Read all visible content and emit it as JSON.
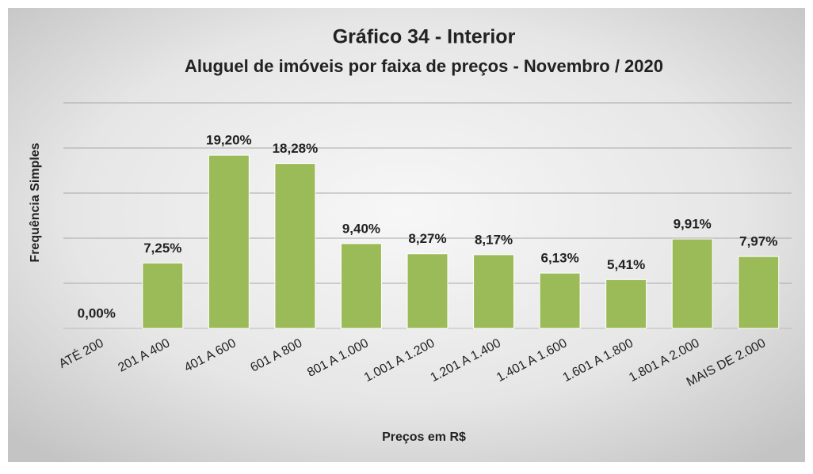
{
  "chart_data": {
    "type": "bar",
    "title": "Gráfico 34 - Interior",
    "subtitle": "Aluguel de imóveis por faixa de preços - Novembro / 2020",
    "x_label": "Preços em R$",
    "y_label": "Frequência Simples",
    "categories": [
      "ATÉ 200",
      "201 A 400",
      "401 A 600",
      "601 A 800",
      "801 A 1.000",
      "1.001 A 1.200",
      "1.201 A 1.400",
      "1.401 A 1.600",
      "1.601 A 1.800",
      "1.801 A 2.000",
      "MAIS DE 2.000"
    ],
    "values": [
      0,
      7.25,
      19.2,
      18.28,
      9.4,
      8.27,
      8.17,
      6.13,
      5.41,
      9.91,
      7.97
    ],
    "value_labels": [
      "0,00%",
      "7,25%",
      "19,20%",
      "18,28%",
      "9,40%",
      "8,27%",
      "8,17%",
      "6,13%",
      "5,41%",
      "9,91%",
      "7,97%"
    ],
    "color": "#9bbb59",
    "ylim": [
      0,
      25
    ],
    "yticks": [
      0,
      5,
      10,
      15,
      20,
      25
    ],
    "grid": true
  }
}
